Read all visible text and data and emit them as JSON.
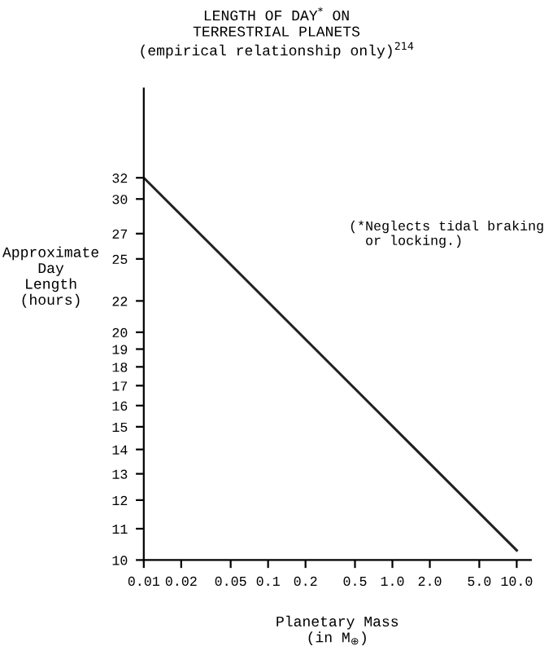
{
  "chart_data": {
    "type": "line",
    "title": "LENGTH OF DAY$^{*}$ ON\nTERRESTRIAL PLANETS\n(empirical relationship only)$^{214}$",
    "xlabel": "Planetary Mass\n(in M$_{⊕}$)",
    "ylabel": "Approximate\nDay\nLength\n(hours)",
    "annotations": [
      "(*Neglects tidal braking\n  or locking.)"
    ],
    "x": [
      0.01,
      10
    ],
    "series": [
      {
        "color": "#222222",
        "values": [
          32,
          10.3
        ]
      }
    ],
    "log": "xy",
    "xlim": [
      0.01,
      13
    ],
    "ylim": [
      10,
      42
    ],
    "xticks": [
      0.01,
      0.02,
      0.05,
      0.1,
      0.2,
      0.5,
      {
        "value": 1,
        "label": "1.0"
      },
      {
        "value": 2,
        "label": "2.0"
      },
      {
        "value": 5,
        "label": "5.0"
      },
      {
        "value": 10,
        "label": "10.0"
      }
    ],
    "yticks": [
      10,
      11,
      12,
      13,
      14,
      15,
      16,
      17,
      18,
      19,
      20,
      22,
      25,
      27,
      30,
      32
    ],
    "grid": false,
    "marker": "none",
    "line_style": "solid"
  }
}
